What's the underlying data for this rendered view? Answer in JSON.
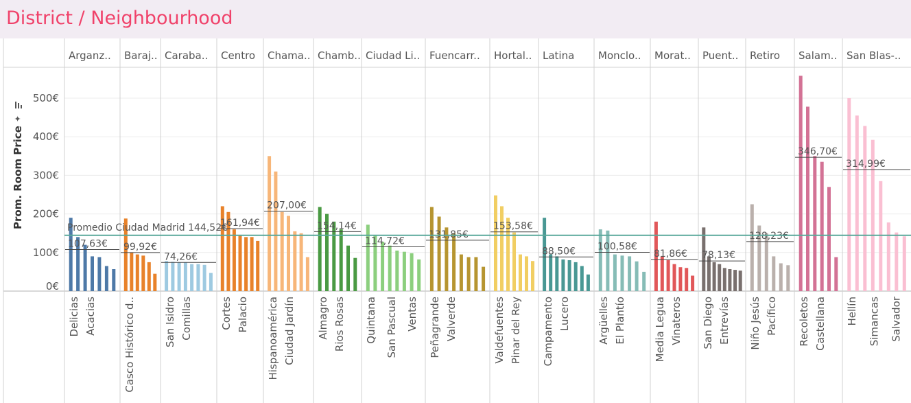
{
  "title": "District / Neighbourhood",
  "chart_data": {
    "type": "bar",
    "ylabel": "Prom. Room Price",
    "ylim": [
      0,
      560
    ],
    "yticks": [
      "0€",
      "100€",
      "200€",
      "300€",
      "400€",
      "500€"
    ],
    "reference_line": {
      "label": "Promedio Ciudad Madrid 144,52€",
      "value": 144.52,
      "color": "#5aa89b"
    },
    "grid": true,
    "districts": [
      {
        "name": "Arganz..",
        "color": "#4e79a7",
        "avg": 107.63,
        "avg_label": "107,63€",
        "values": [
          190,
          140,
          120,
          90,
          88,
          65,
          57
        ],
        "neighbourhoods": [
          "Delicias",
          "Acacias"
        ]
      },
      {
        "name": "Baraj..",
        "color": "#e8822a",
        "avg": 99.92,
        "avg_label": "99,92€",
        "values": [
          188,
          100,
          95,
          92,
          75,
          45
        ],
        "neighbourhoods": [
          "Casco Histórico d.."
        ]
      },
      {
        "name": "Caraba..",
        "color": "#9ecae1",
        "avg": 74.26,
        "avg_label": "74,26€",
        "values": [
          78,
          76,
          75,
          75,
          70,
          70,
          68,
          47
        ],
        "neighbourhoods": [
          "San Isidro",
          "Comillas"
        ]
      },
      {
        "name": "Centro",
        "color": "#e8822a",
        "avg": 161.94,
        "avg_label": "161,94€",
        "values": [
          220,
          205,
          160,
          145,
          140,
          140,
          130
        ],
        "neighbourhoods": [
          "Cortes",
          "Palacio"
        ]
      },
      {
        "name": "Chama..",
        "color": "#f7b679",
        "avg": 207.0,
        "avg_label": "207,00€",
        "values": [
          350,
          310,
          205,
          195,
          155,
          150,
          88
        ],
        "neighbourhoods": [
          "Hispanoamérica",
          "Ciudad Jardín"
        ]
      },
      {
        "name": "Chamb..",
        "color": "#4a9a43",
        "avg": 154.14,
        "avg_label": "154,14€",
        "values": [
          218,
          200,
          180,
          160,
          118,
          86
        ],
        "neighbourhoods": [
          "Almagro",
          "Rios Rosas"
        ]
      },
      {
        "name": "Ciudad Li..",
        "color": "#8ccf7e",
        "avg": 114.72,
        "avg_label": "114,72€",
        "values": [
          172,
          145,
          128,
          118,
          105,
          102,
          98,
          82
        ],
        "neighbourhoods": [
          "Quintana",
          "San Pascual",
          "Ventas"
        ]
      },
      {
        "name": "Fuencarr..",
        "color": "#b69530",
        "avg": 131.85,
        "avg_label": "131,85€",
        "values": [
          218,
          193,
          165,
          150,
          95,
          88,
          88,
          63
        ],
        "neighbourhoods": [
          "Peñagrande",
          "Valverde"
        ]
      },
      {
        "name": "Hortal..",
        "color": "#f1ce63",
        "avg": 153.58,
        "avg_label": "153,58€",
        "values": [
          248,
          220,
          190,
          152,
          95,
          90,
          78
        ],
        "neighbourhoods": [
          "Valdefuentes",
          "Pinar del Rey"
        ]
      },
      {
        "name": "Latina",
        "color": "#499894",
        "avg": 88.5,
        "avg_label": "88,50€",
        "values": [
          190,
          95,
          90,
          82,
          80,
          75,
          65,
          43
        ],
        "neighbourhoods": [
          "Campamento",
          "Lucero"
        ]
      },
      {
        "name": "Monclo..",
        "color": "#86bcb6",
        "avg": 100.58,
        "avg_label": "100,58€",
        "values": [
          160,
          157,
          95,
          92,
          90,
          77,
          50
        ],
        "neighbourhoods": [
          "Argüelles",
          "El Plantío"
        ]
      },
      {
        "name": "Morat..",
        "color": "#e15759",
        "avg": 81.86,
        "avg_label": "81,86€",
        "values": [
          180,
          90,
          80,
          70,
          62,
          60,
          40
        ],
        "neighbourhoods": [
          "Media Legua",
          "Vinateros"
        ]
      },
      {
        "name": "Puent..",
        "color": "#79706e",
        "avg": 78.13,
        "avg_label": "78,13€",
        "values": [
          165,
          90,
          75,
          70,
          60,
          57,
          55,
          53
        ],
        "neighbourhoods": [
          "San Diego",
          "Entrevías"
        ]
      },
      {
        "name": "Retiro",
        "color": "#bab0ac",
        "avg": 128.23,
        "avg_label": "128,23€",
        "values": [
          225,
          170,
          150,
          90,
          72,
          67
        ],
        "neighbourhoods": [
          "Niño Jesús",
          "Pacífico"
        ]
      },
      {
        "name": "Salam..",
        "color": "#d37295",
        "avg": 346.7,
        "avg_label": "346,70€",
        "values": [
          558,
          478,
          350,
          335,
          270,
          88
        ],
        "neighbourhoods": [
          "Recoletos",
          "Castellana"
        ]
      },
      {
        "name": "San Blas-..",
        "color": "#fabfd2",
        "avg": 314.99,
        "avg_label": "314,99€",
        "values": [
          500,
          455,
          428,
          392,
          285,
          178,
          152,
          142
        ],
        "neighbourhoods": [
          "Hellín",
          "Simancas",
          "Salvador"
        ]
      }
    ]
  }
}
